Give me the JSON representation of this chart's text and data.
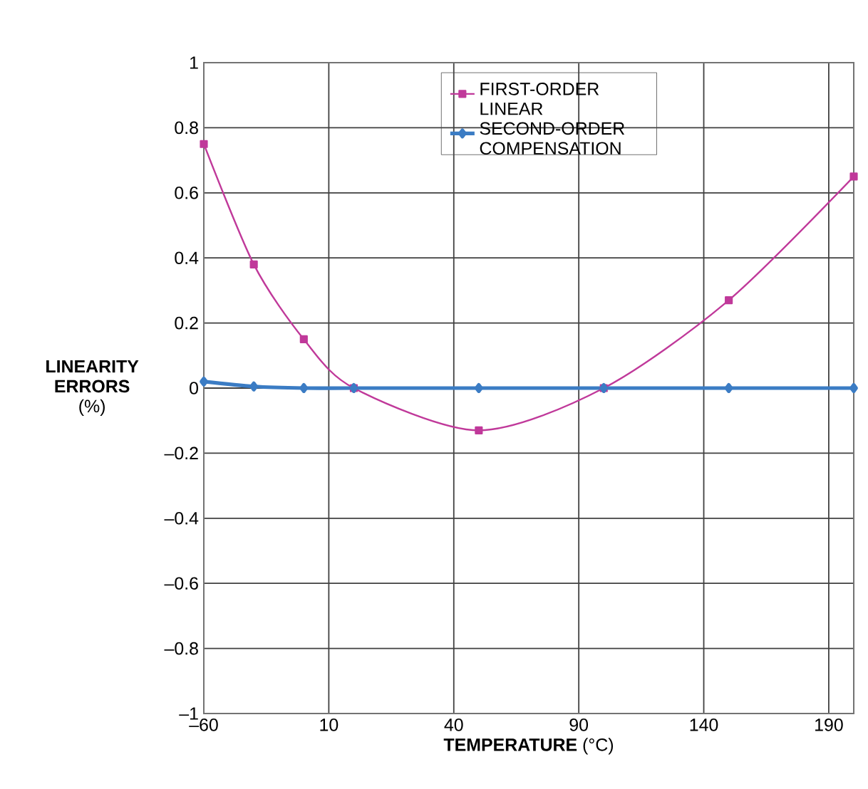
{
  "chart_data": {
    "type": "line",
    "xlabel": "**TEMPERATURE** (°C)",
    "ylabel": "**LINEARITY ERRORS** (%)",
    "x": [
      -60,
      -40,
      -20,
      0,
      50,
      100,
      150,
      200
    ],
    "series": [
      {
        "name": "FIRST-ORDER LINEAR",
        "color": "#c0399a",
        "marker": "square",
        "values": [
          0.75,
          0.38,
          0.15,
          0,
          -0.13,
          0,
          0.27,
          0.65
        ]
      },
      {
        "name": "SECOND-ORDER COMPENSATION",
        "color": "#3b7cc4",
        "marker": "diamond",
        "values": [
          0.02,
          0.005,
          0,
          0,
          0,
          0,
          0,
          0
        ]
      }
    ],
    "xlim": [
      -60,
      200
    ],
    "xticks": [
      {
        "value": -60,
        "label": "–60"
      },
      {
        "value": -10,
        "label": "10"
      },
      40,
      90,
      140,
      190
    ],
    "ylim": [
      -1,
      1
    ],
    "yticks": [
      {
        "value": -1,
        "label": "–1"
      },
      {
        "value": -0.8,
        "label": "–0.8"
      },
      {
        "value": -0.6,
        "label": "–0.6"
      },
      {
        "value": -0.4,
        "label": "–0.4"
      },
      {
        "value": -0.2,
        "label": "–0.2"
      },
      0,
      0.2,
      0.4,
      0.6,
      0.8,
      1
    ],
    "grid": true,
    "legend": "top right",
    "line_style": "solid"
  }
}
